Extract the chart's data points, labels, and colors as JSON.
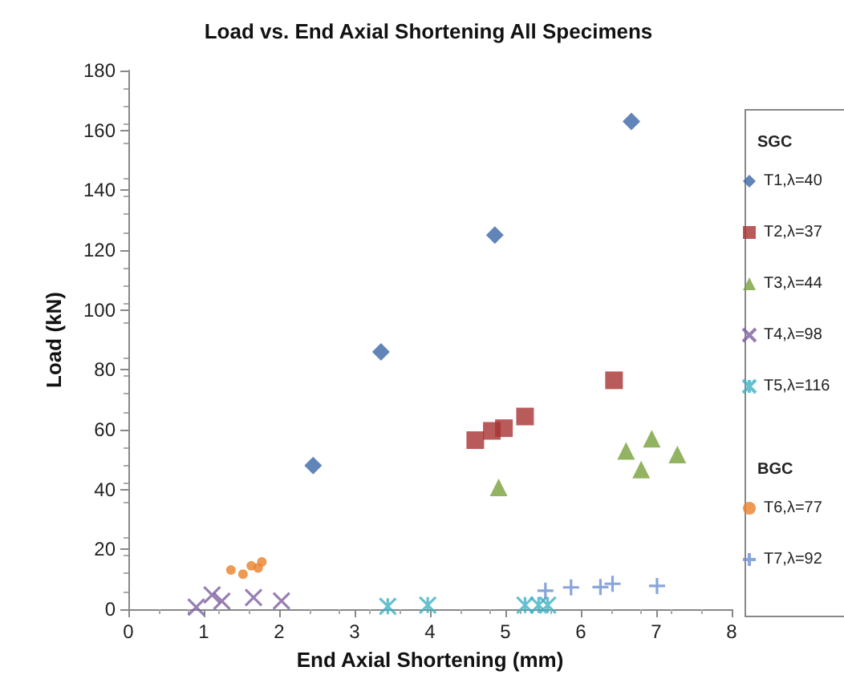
{
  "chart_data": {
    "type": "scatter",
    "title": "Load vs. End Axial Shortening All Specimens",
    "xlabel": "End Axial Shortening (mm)",
    "ylabel": "Load (kN)",
    "xlim": [
      0,
      8
    ],
    "xticks": [
      0,
      1,
      2,
      3,
      4,
      5,
      6,
      7,
      8
    ],
    "ylim": [
      0,
      180
    ],
    "yticks": [
      0,
      20,
      40,
      60,
      80,
      100,
      120,
      140,
      160,
      180
    ],
    "grid": false,
    "legend": "right",
    "annotations": [
      "SGC",
      "BGC"
    ],
    "series": [
      {
        "name": "T1,λ=40",
        "color": "#3a66a8",
        "marker": "diamond",
        "x": [
          2.45,
          3.35,
          4.86,
          6.67
        ],
        "values": [
          48,
          86,
          125,
          163
        ]
      },
      {
        "name": "T2,λ=37",
        "color": "#a83232",
        "marker": "square",
        "x": [
          4.6,
          4.82,
          4.98,
          5.26,
          6.44
        ],
        "values": [
          56.5,
          59.6,
          60.5,
          64.4,
          76.5
        ]
      },
      {
        "name": "T3,λ=44",
        "color": "#77a03a",
        "marker": "triangle",
        "x": [
          4.91,
          6.6,
          6.8,
          6.94,
          7.28
        ],
        "values": [
          40.7,
          52.9,
          46.7,
          57,
          51.7
        ]
      },
      {
        "name": "T4,λ=98",
        "color": "#7e5fa0",
        "marker": "x",
        "x": [
          0.9,
          1.11,
          1.24,
          1.66,
          2.03
        ],
        "values": [
          0.7,
          4.8,
          2.7,
          3.9,
          2.8
        ]
      },
      {
        "name": "T5,λ=116",
        "color": "#3fb0c3",
        "marker": "cross",
        "x": [
          3.44,
          3.97,
          5.26,
          5.44,
          5.56
        ],
        "values": [
          1,
          1.4,
          1.4,
          1.4,
          1.4
        ]
      },
      {
        "name": "T6,λ=77",
        "color": "#e8812a",
        "marker": "circle",
        "x": [
          1.36,
          1.52,
          1.63,
          1.72,
          1.77
        ],
        "values": [
          13.1,
          11.7,
          14.5,
          13.8,
          15.8
        ]
      },
      {
        "name": "T7,λ=92",
        "color": "#6b8fd0",
        "marker": "plus",
        "x": [
          5.53,
          5.87,
          6.26,
          6.42,
          7.01
        ],
        "values": [
          6.2,
          7.3,
          7.4,
          8.5,
          7.8
        ]
      }
    ]
  }
}
